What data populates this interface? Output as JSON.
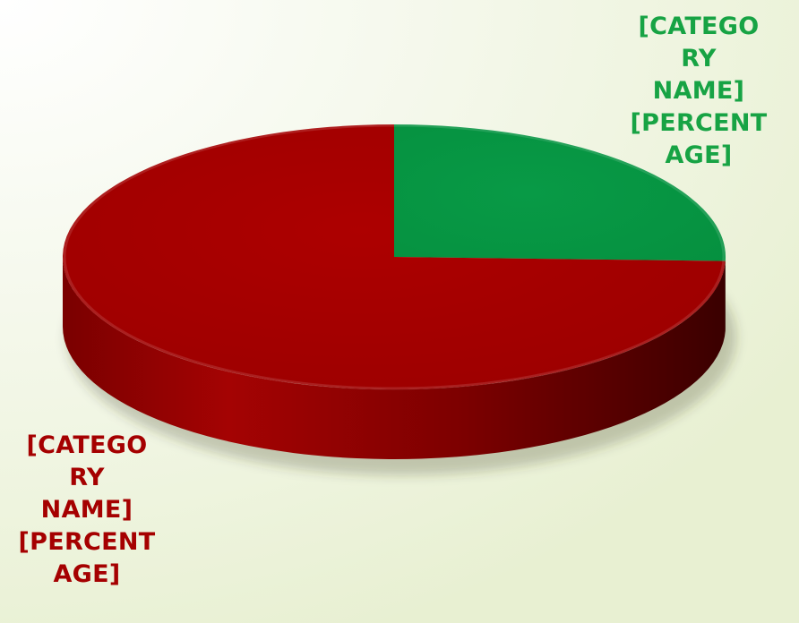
{
  "chart_data": {
    "type": "pie",
    "style": "3d",
    "series": [
      {
        "values": [
          25.5,
          74.5
        ],
        "colors": [
          "#069644",
          "#a50000"
        ]
      }
    ],
    "categories": [
      "",
      ""
    ],
    "data_labels": [
      {
        "lines": [
          "[CATEGO",
          "RY",
          "NAME]",
          "[PERCENT",
          "AGE]"
        ],
        "color": "#17a344"
      },
      {
        "lines": [
          "[CATEGO",
          "RY",
          "NAME]",
          "[PERCENT",
          "AGE]"
        ],
        "color": "#a50000"
      }
    ],
    "title": "",
    "legend": "none"
  }
}
